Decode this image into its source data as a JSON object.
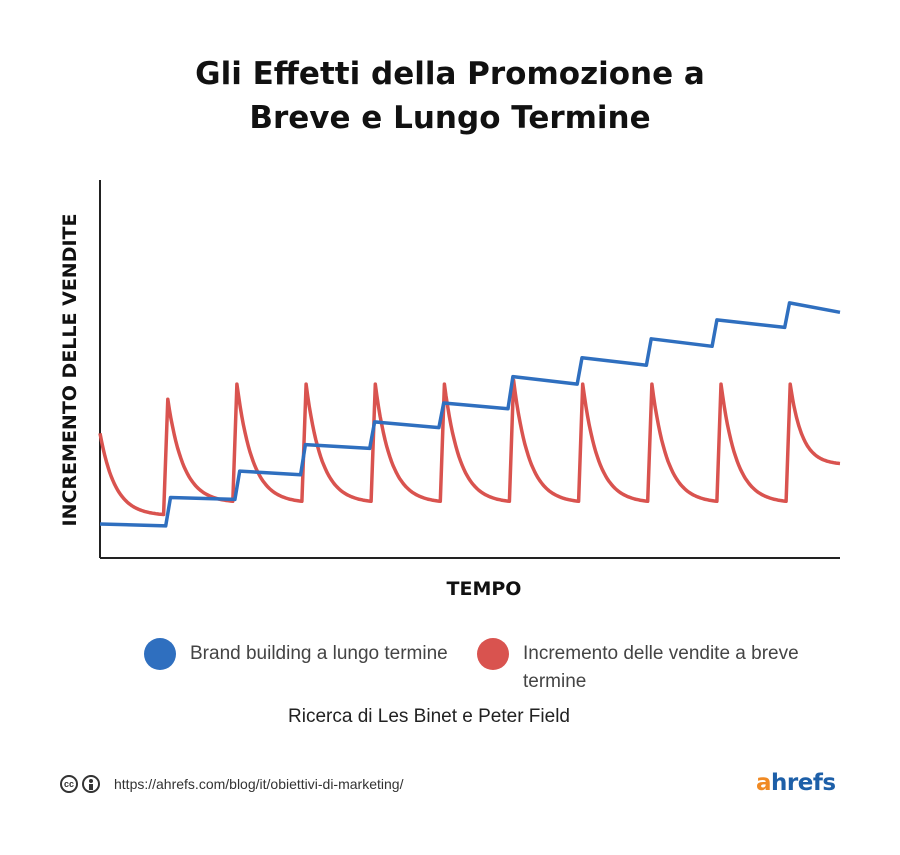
{
  "title_line1": "Gli Effetti della Promozione a",
  "title_line2": "Breve e Lungo Termine",
  "chart_data": {
    "type": "line",
    "title": "Gli Effetti della Promozione a Breve e Lungo Termine",
    "xlabel": "TEMPO",
    "ylabel": "INCREMENTO DELLE VENDITE",
    "xlim": [
      0,
      10.7
    ],
    "ylim": [
      0,
      10
    ],
    "series": [
      {
        "name": "Brand building a lungo termine",
        "color": "#2f6fbf",
        "points": [
          [
            0,
            0.9
          ],
          [
            0.95,
            0.85
          ],
          [
            1.02,
            1.6
          ],
          [
            1.95,
            1.55
          ],
          [
            2.02,
            2.3
          ],
          [
            2.9,
            2.2
          ],
          [
            2.97,
            3
          ],
          [
            3.9,
            2.9
          ],
          [
            3.97,
            3.6
          ],
          [
            4.9,
            3.45
          ],
          [
            4.97,
            4.1
          ],
          [
            5.9,
            3.95
          ],
          [
            5.97,
            4.8
          ],
          [
            6.9,
            4.6
          ],
          [
            6.97,
            5.3
          ],
          [
            7.9,
            5.1
          ],
          [
            7.97,
            5.8
          ],
          [
            8.85,
            5.6
          ],
          [
            8.92,
            6.3
          ],
          [
            9.9,
            6.1
          ],
          [
            9.97,
            6.75
          ],
          [
            10.7,
            6.5
          ]
        ]
      },
      {
        "name": "Incremento delle vendite a breve termine",
        "color": "#d9534f",
        "peaks": [
          [
            0,
            3.3
          ],
          [
            0.98,
            4.2
          ],
          [
            1.98,
            4.6
          ],
          [
            2.98,
            4.6
          ],
          [
            3.98,
            4.6
          ],
          [
            4.98,
            4.6
          ],
          [
            5.98,
            4.7
          ],
          [
            6.98,
            4.6
          ],
          [
            7.98,
            4.6
          ],
          [
            8.98,
            4.6
          ],
          [
            9.98,
            4.6
          ]
        ],
        "trough": 1.5,
        "trough_first": 1.15
      }
    ]
  },
  "legend": [
    {
      "label": "Brand building a lungo termine",
      "color": "#2f6fbf"
    },
    {
      "label_line1": "Incremento delle vendite a breve",
      "label_line2": "termine",
      "color": "#d9534f"
    }
  ],
  "source": "Ricerca di Les Binet e Peter Field",
  "footer": {
    "cc_icon": "cc-icon",
    "by_icon": "by-icon",
    "cc_text": "cc",
    "url": "https://ahrefs.com/blog/it/obiettivi-di-marketing/",
    "logo_a": "a",
    "logo_rest": "hrefs"
  }
}
